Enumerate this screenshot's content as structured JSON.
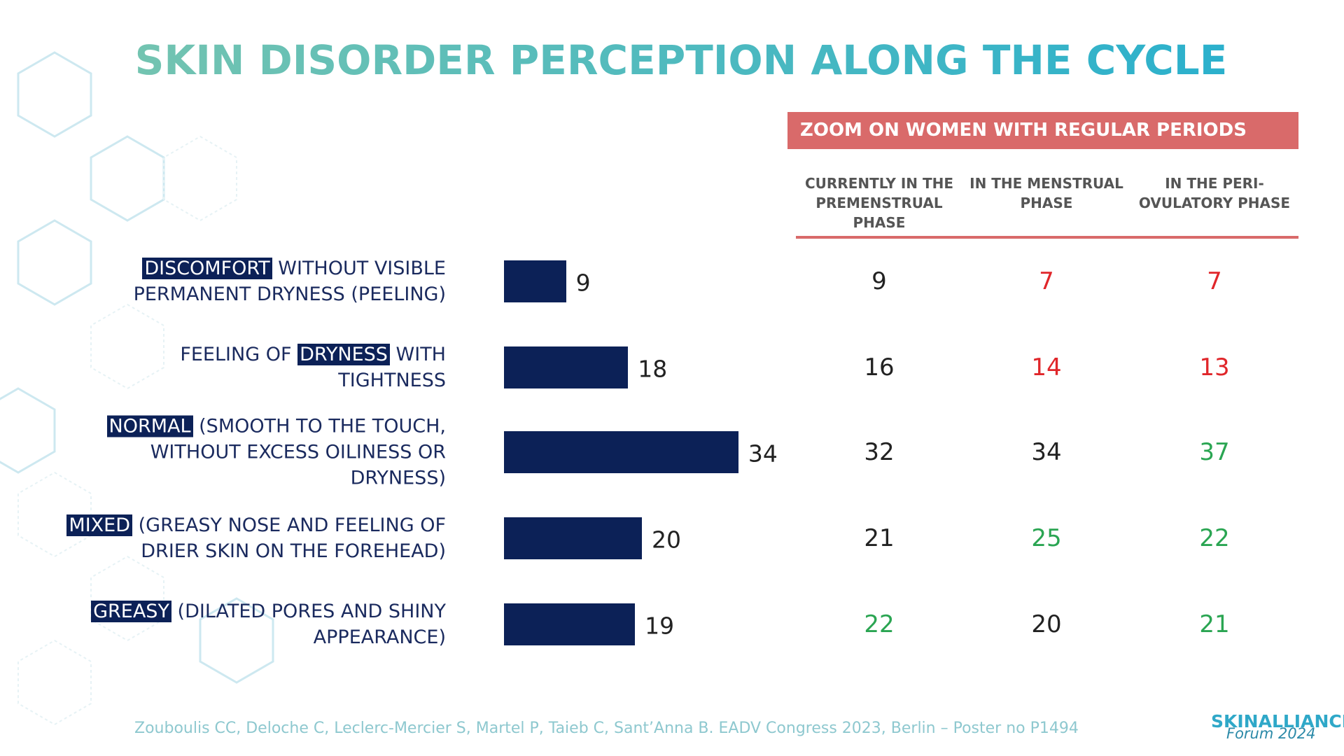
{
  "chart_data": {
    "type": "bar",
    "orientation": "horizontal",
    "title": "SKIN DISORDER PERCEPTION ALONG THE CYCLE",
    "categories": [
      [
        {
          "text": "DISCOMFORT",
          "highlight": true
        },
        {
          "text": "WITHOUT VISIBLE PERMANENT DRYNESS (PEELING)"
        }
      ],
      [
        {
          "text": "FEELING OF"
        },
        {
          "text": "DRYNESS",
          "highlight": true
        },
        {
          "text": "WITH TIGHTNESS"
        }
      ],
      [
        {
          "text": "NORMAL",
          "highlight": true
        },
        {
          "text": "(SMOOTH TO THE TOUCH, WITHOUT EXCESS OILINESS OR DRYNESS)"
        }
      ],
      [
        {
          "text": "MIXED",
          "highlight": true
        },
        {
          "text": "(GREASY NOSE AND FEELING OF DRIER SKIN ON THE FOREHEAD)"
        }
      ],
      [
        {
          "text": "GREASY",
          "highlight": true
        },
        {
          "text": "(DILATED PORES AND SHINY APPEARANCE)"
        }
      ]
    ],
    "values": [
      9,
      18,
      34,
      20,
      19
    ],
    "color": "#0c2157",
    "highlight_color": "#0c2157"
  },
  "table": {
    "title": "ZOOM ON WOMEN WITH REGULAR PERIODS",
    "title_color": "#d96a6a",
    "columns": [
      "CURRENTLY IN THE PREMENSTRUAL PHASE",
      "IN THE MENSTRUAL PHASE",
      "IN THE PERI-OVULATORY PHASE"
    ],
    "rows": [
      [
        {
          "value": 9,
          "color": "#222222"
        },
        {
          "value": 7,
          "color": "#e0262a"
        },
        {
          "value": 7,
          "color": "#e0262a"
        }
      ],
      [
        {
          "value": 16,
          "color": "#222222"
        },
        {
          "value": 14,
          "color": "#e0262a"
        },
        {
          "value": 13,
          "color": "#e0262a"
        }
      ],
      [
        {
          "value": 32,
          "color": "#222222"
        },
        {
          "value": 34,
          "color": "#222222"
        },
        {
          "value": 37,
          "color": "#2aa552"
        }
      ],
      [
        {
          "value": 21,
          "color": "#222222"
        },
        {
          "value": 25,
          "color": "#2aa552"
        },
        {
          "value": 22,
          "color": "#2aa552"
        }
      ],
      [
        {
          "value": 22,
          "color": "#2aa552"
        },
        {
          "value": 20,
          "color": "#222222"
        },
        {
          "value": 21,
          "color": "#2aa552"
        }
      ]
    ]
  },
  "footer": {
    "citation": "Zouboulis CC, Deloche C, Leclerc-Mercier S, Martel P, Taieb C, Sant’Anna B. EADV Congress 2023, Berlin – Poster no P1494",
    "logo": "SKINALLIANCE",
    "logo_sub": "Forum 2024"
  }
}
